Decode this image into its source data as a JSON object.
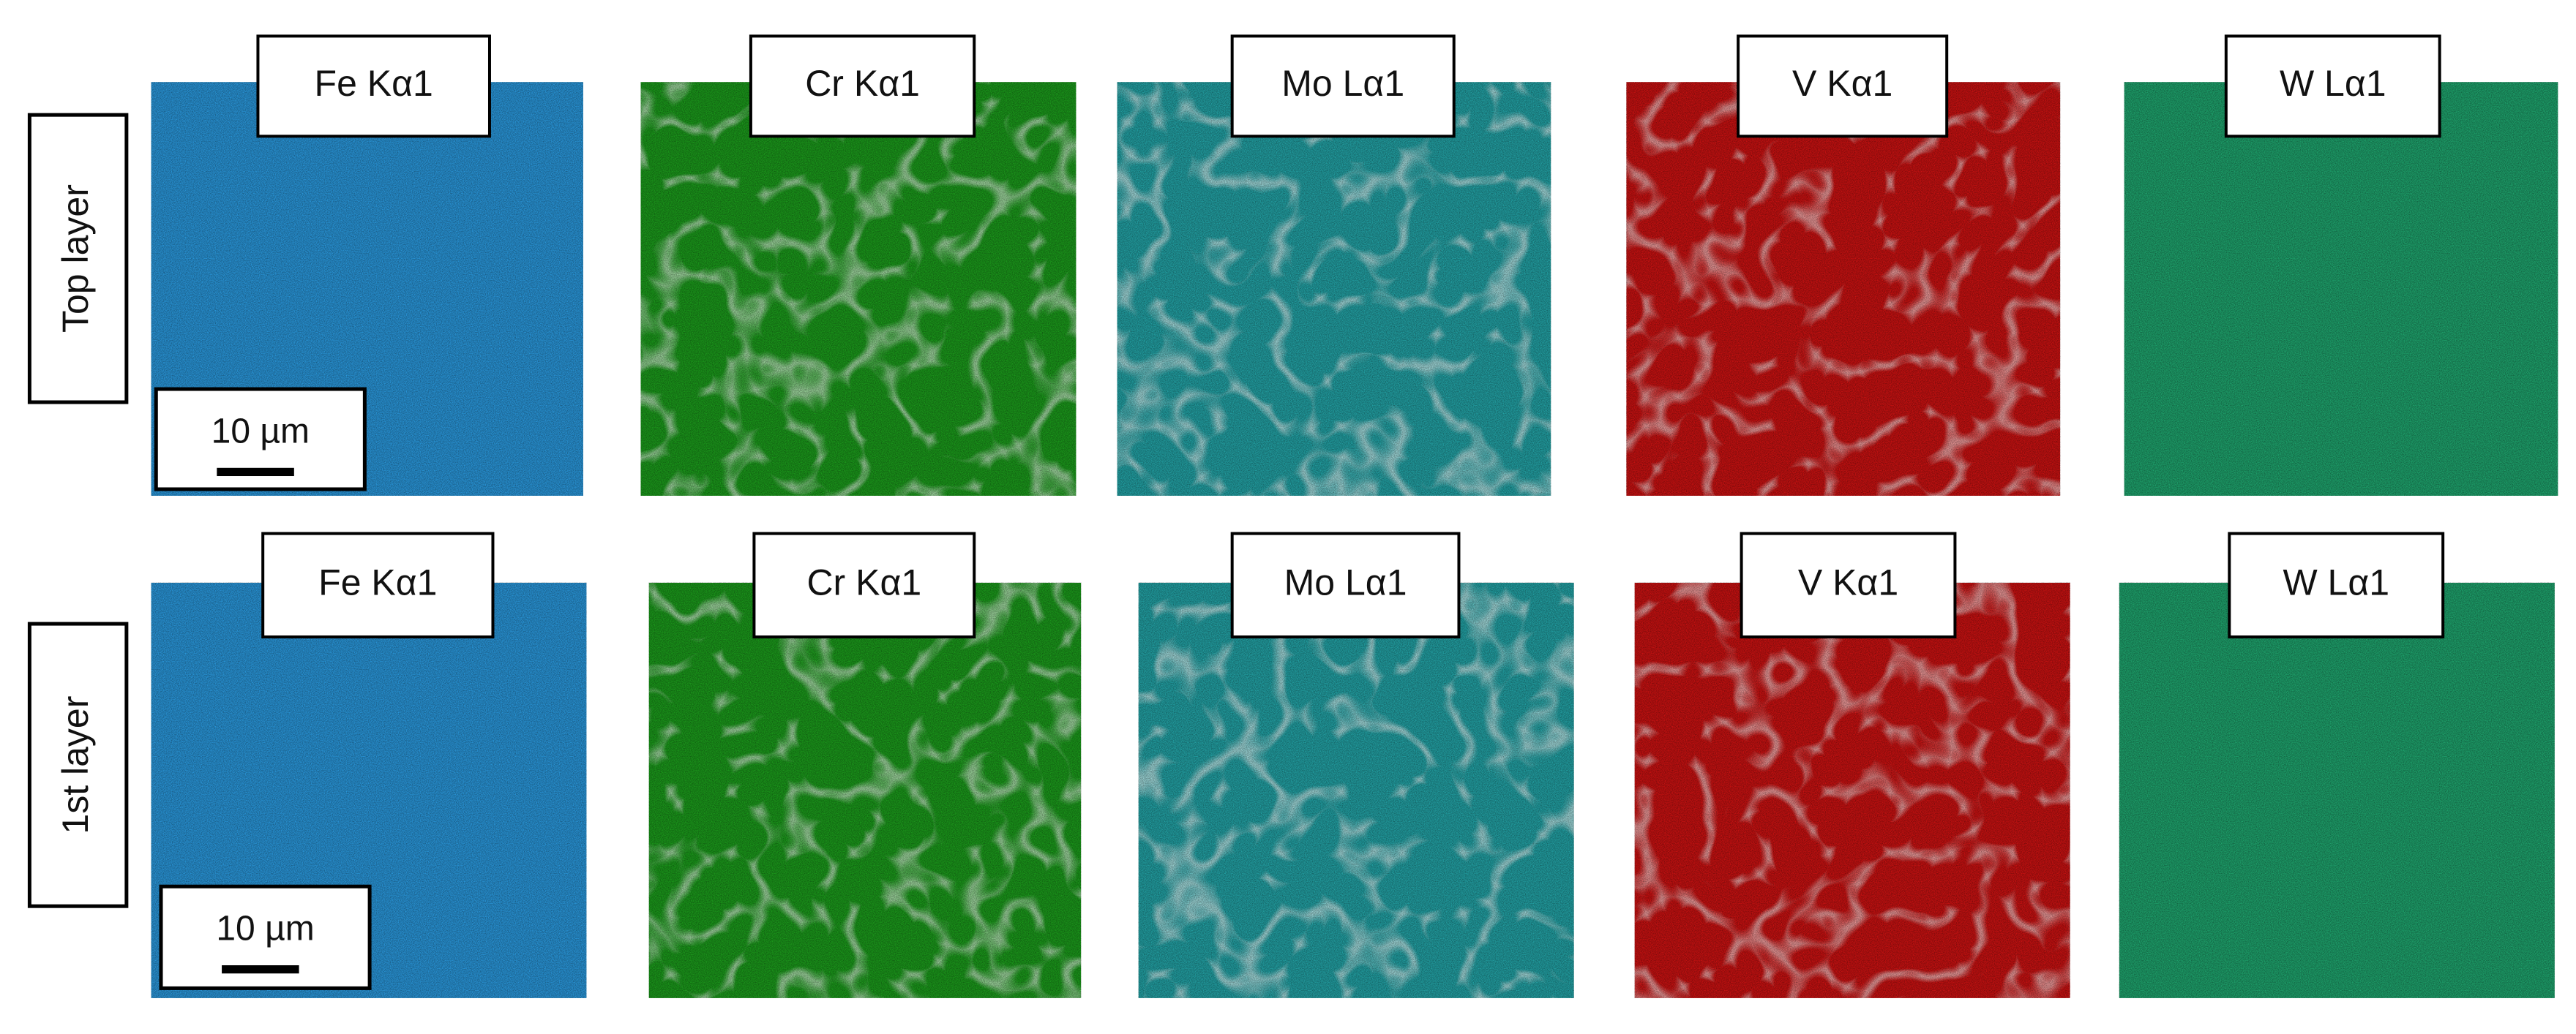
{
  "rows": [
    {
      "label": "Top layer",
      "scale_bar": "10 µm",
      "panels": [
        {
          "label": "Fe Kα1"
        },
        {
          "label": "Cr Kα1"
        },
        {
          "label": "Mo Lα1"
        },
        {
          "label": "V Kα1"
        },
        {
          "label": "W Lα1"
        }
      ]
    },
    {
      "label": "1st layer",
      "scale_bar": "10 µm",
      "panels": [
        {
          "label": "Fe Kα1"
        },
        {
          "label": "Cr Kα1"
        },
        {
          "label": "Mo Lα1"
        },
        {
          "label": "V Kα1"
        },
        {
          "label": "W Lα1"
        }
      ]
    }
  ]
}
